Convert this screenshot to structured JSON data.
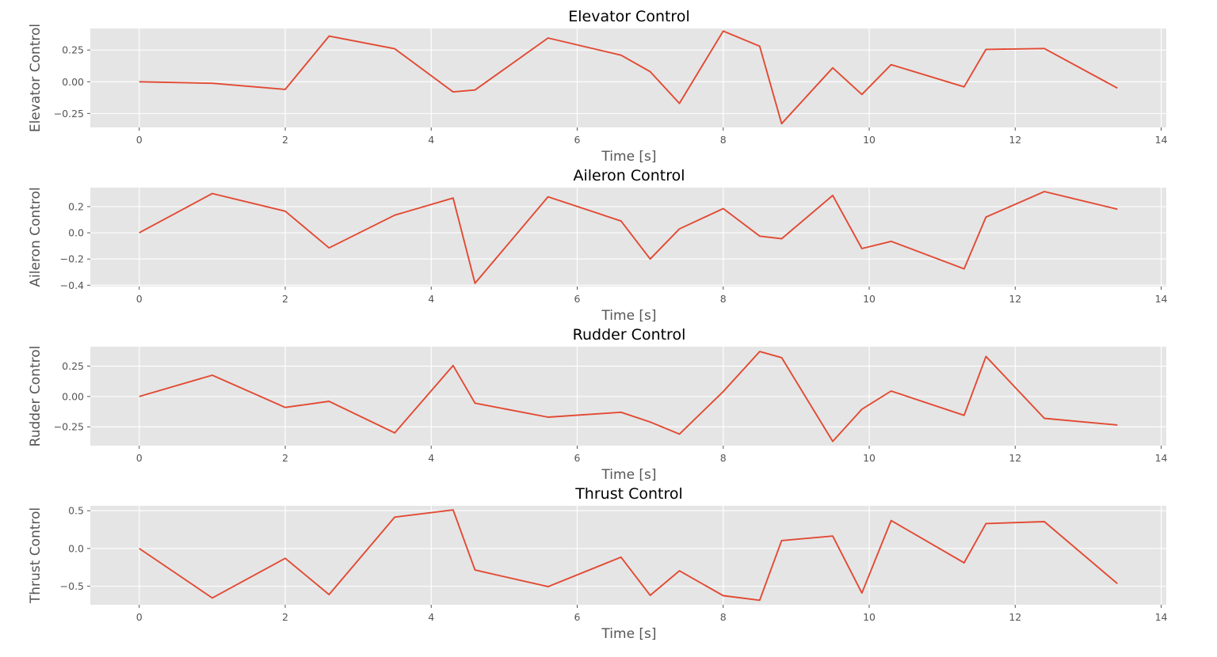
{
  "colors": {
    "plot_background": "#e5e5e5",
    "grid": "#ffffff",
    "series": "#e24a33",
    "text": "#555555"
  },
  "chart_data": [
    {
      "type": "line",
      "title": "Elevator Control",
      "xlabel": "Time [s]",
      "ylabel": "Elevator Control",
      "xlim": [
        -0.67,
        14.07
      ],
      "ylim": [
        -0.36,
        0.42
      ],
      "xticks": [
        0,
        2,
        4,
        6,
        8,
        10,
        12,
        14
      ],
      "yticks": [
        -0.25,
        0.0,
        0.25
      ],
      "ytick_labels": [
        "−0.25",
        "0.00",
        "0.25"
      ],
      "grid": true,
      "x": [
        0,
        1,
        2,
        2.6,
        3.5,
        4.3,
        4.6,
        5.6,
        6.6,
        7.0,
        7.4,
        8.0,
        8.5,
        8.8,
        9.5,
        9.9,
        10.3,
        11.3,
        11.6,
        12.4,
        13.4
      ],
      "series": [
        {
          "values": [
            0.0,
            -0.012,
            -0.06,
            0.36,
            0.26,
            -0.08,
            -0.065,
            0.345,
            0.21,
            0.08,
            -0.17,
            0.4,
            0.28,
            -0.33,
            0.11,
            -0.1,
            0.135,
            -0.04,
            0.255,
            0.262,
            -0.05
          ]
        }
      ]
    },
    {
      "type": "line",
      "title": "Aileron Control",
      "xlabel": "Time [s]",
      "ylabel": "Aileron Control",
      "xlim": [
        -0.67,
        14.07
      ],
      "ylim": [
        -0.41,
        0.345
      ],
      "xticks": [
        0,
        2,
        4,
        6,
        8,
        10,
        12,
        14
      ],
      "yticks": [
        -0.4,
        -0.2,
        0.0,
        0.2
      ],
      "ytick_labels": [
        "−0.4",
        "−0.2",
        "0.0",
        "0.2"
      ],
      "grid": true,
      "x": [
        0,
        1,
        2,
        2.6,
        3.5,
        4.3,
        4.6,
        5.6,
        6.6,
        7.0,
        7.4,
        8.0,
        8.5,
        8.8,
        9.5,
        9.9,
        10.3,
        11.3,
        11.6,
        12.4,
        13.4
      ],
      "series": [
        {
          "values": [
            0.0,
            0.3,
            0.165,
            -0.115,
            0.135,
            0.265,
            -0.385,
            0.275,
            0.09,
            -0.2,
            0.03,
            0.185,
            -0.025,
            -0.045,
            0.285,
            -0.12,
            -0.065,
            -0.275,
            0.12,
            0.315,
            0.18
          ]
        }
      ]
    },
    {
      "type": "line",
      "title": "Rudder Control",
      "xlabel": "Time [s]",
      "ylabel": "Rudder Control",
      "xlim": [
        -0.67,
        14.07
      ],
      "ylim": [
        -0.405,
        0.41
      ],
      "xticks": [
        0,
        2,
        4,
        6,
        8,
        10,
        12,
        14
      ],
      "yticks": [
        -0.25,
        0.0,
        0.25
      ],
      "ytick_labels": [
        "−0.25",
        "0.00",
        "0.25"
      ],
      "grid": true,
      "x": [
        0,
        1,
        2,
        2.6,
        3.5,
        4.3,
        4.6,
        5.6,
        6.6,
        7.0,
        7.4,
        8.0,
        8.5,
        8.8,
        9.5,
        9.9,
        10.3,
        11.3,
        11.6,
        12.4,
        13.4
      ],
      "series": [
        {
          "values": [
            0.0,
            0.175,
            -0.09,
            -0.04,
            -0.3,
            0.255,
            -0.055,
            -0.17,
            -0.13,
            -0.21,
            -0.31,
            0.04,
            0.37,
            0.32,
            -0.37,
            -0.105,
            0.045,
            -0.155,
            0.33,
            -0.18,
            -0.235
          ]
        }
      ]
    },
    {
      "type": "line",
      "title": "Thrust Control",
      "xlabel": "Time [s]",
      "ylabel": "Thrust Control",
      "xlim": [
        -0.67,
        14.07
      ],
      "ylim": [
        -0.745,
        0.565
      ],
      "xticks": [
        0,
        2,
        4,
        6,
        8,
        10,
        12,
        14
      ],
      "yticks": [
        -0.5,
        0.0,
        0.5
      ],
      "ytick_labels": [
        "−0.5",
        "0.0",
        "0.5"
      ],
      "grid": true,
      "x": [
        0,
        1,
        2,
        2.6,
        3.5,
        4.3,
        4.6,
        5.6,
        6.6,
        7.0,
        7.4,
        8.0,
        8.5,
        8.8,
        9.5,
        9.9,
        10.3,
        11.3,
        11.6,
        12.4,
        13.4
      ],
      "series": [
        {
          "values": [
            0.0,
            -0.655,
            -0.13,
            -0.61,
            0.415,
            0.51,
            -0.285,
            -0.505,
            -0.115,
            -0.62,
            -0.295,
            -0.625,
            -0.685,
            0.105,
            0.165,
            -0.59,
            0.37,
            -0.19,
            0.33,
            0.355,
            -0.465
          ]
        }
      ]
    }
  ]
}
